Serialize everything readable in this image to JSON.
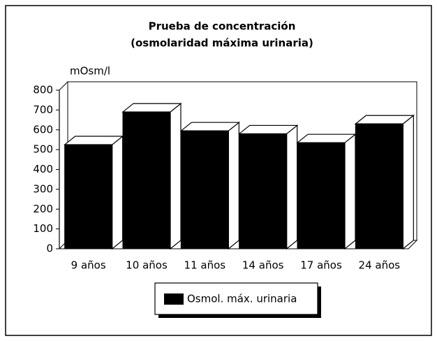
{
  "chart_data": {
    "type": "bar3d",
    "title": "Prueba de concentración",
    "subtitle": "(osmolaridad máxima urinaria)",
    "y_label": "mOsm/l",
    "categories": [
      "9 años",
      "10 años",
      "11 años",
      "14 años",
      "17 años",
      "24 años"
    ],
    "series": [
      {
        "name": "Osmol. máx. urinaria",
        "color": "#000000",
        "values": [
          525,
          690,
          595,
          580,
          535,
          630
        ]
      }
    ],
    "ylim": [
      0,
      800
    ],
    "yticks": [
      0,
      100,
      200,
      300,
      400,
      500,
      600,
      700,
      800
    ],
    "legend": "bottom"
  }
}
